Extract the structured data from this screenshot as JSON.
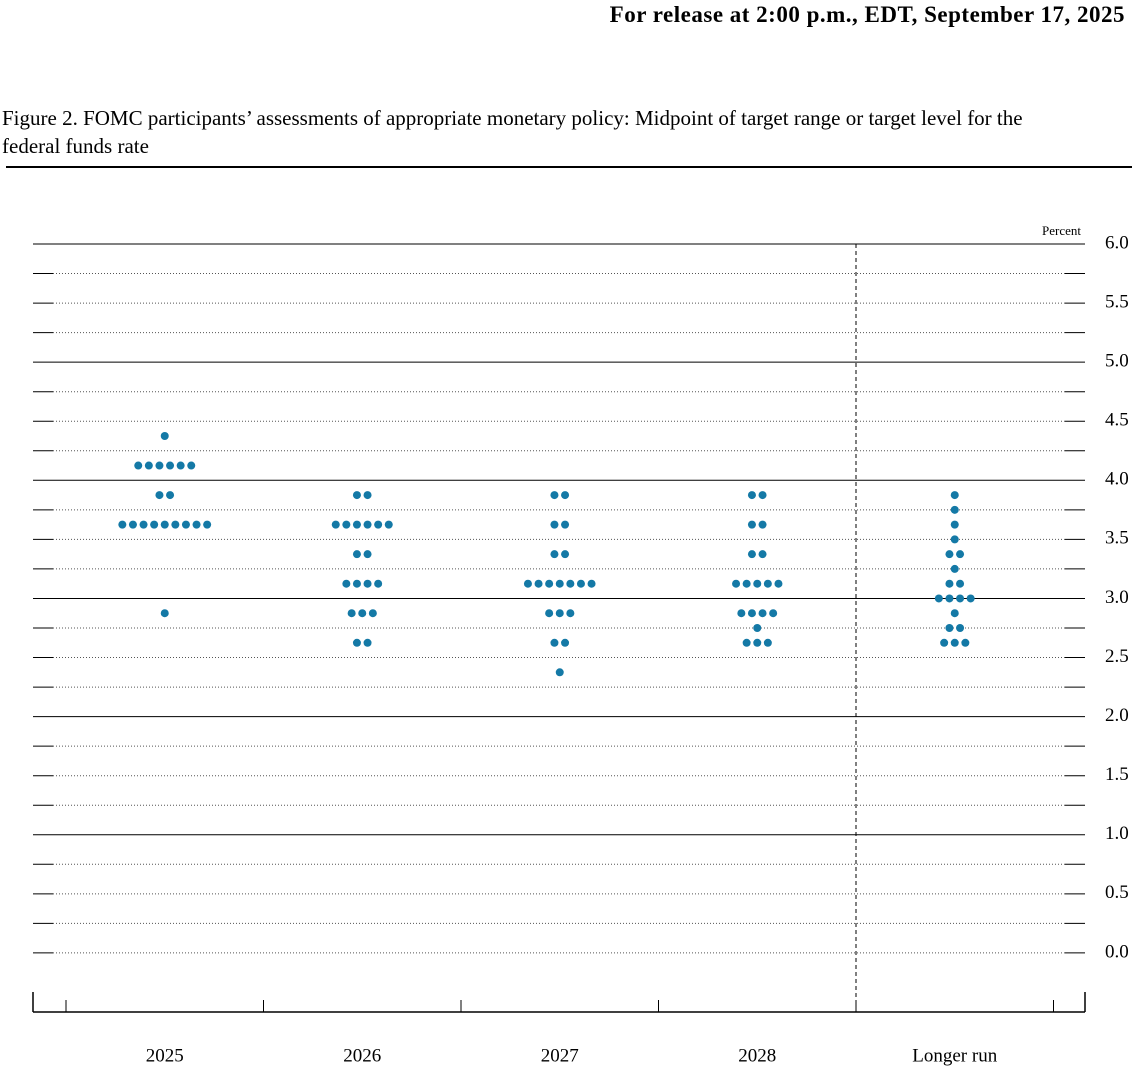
{
  "header": "For release at 2:00 p.m., EDT, September 17, 2025",
  "chart_data": {
    "type": "dotplot",
    "title": "Figure 2. FOMC participants’ assessments of appropriate monetary policy: Midpoint of target range or target level for the federal funds rate",
    "y_label": "Percent",
    "categories": [
      "2025",
      "2026",
      "2027",
      "2028",
      "Longer run"
    ],
    "values": [
      [
        4.375,
        4.125,
        4.125,
        4.125,
        4.125,
        4.125,
        4.125,
        3.875,
        3.875,
        3.625,
        3.625,
        3.625,
        3.625,
        3.625,
        3.625,
        3.625,
        3.625,
        3.625,
        2.875
      ],
      [
        3.875,
        3.875,
        3.625,
        3.625,
        3.625,
        3.625,
        3.625,
        3.625,
        3.375,
        3.375,
        3.125,
        3.125,
        3.125,
        3.125,
        2.875,
        2.875,
        2.875,
        2.625,
        2.625
      ],
      [
        3.875,
        3.875,
        3.625,
        3.625,
        3.375,
        3.375,
        3.125,
        3.125,
        3.125,
        3.125,
        3.125,
        3.125,
        3.125,
        2.875,
        2.875,
        2.875,
        2.625,
        2.625,
        2.375
      ],
      [
        3.875,
        3.875,
        3.625,
        3.625,
        3.375,
        3.375,
        3.125,
        3.125,
        3.125,
        3.125,
        3.125,
        2.875,
        2.875,
        2.875,
        2.875,
        2.75,
        2.625,
        2.625,
        2.625
      ],
      [
        3.875,
        3.75,
        3.625,
        3.5,
        3.375,
        3.375,
        3.25,
        3.125,
        3.125,
        3.0,
        3.0,
        3.0,
        3.0,
        2.875,
        2.75,
        2.75,
        2.625,
        2.625,
        2.625
      ]
    ],
    "color": "#1479a6",
    "ylim": [
      -0.5,
      6
    ],
    "yticks": [
      {
        "value": 0,
        "label": "0.0"
      },
      0.5,
      {
        "value": 1,
        "label": "1.0"
      },
      1.5,
      {
        "value": 2,
        "label": "2.0"
      },
      2.5,
      {
        "value": 3,
        "label": "3.0"
      },
      3.5,
      {
        "value": 4,
        "label": "4.0"
      },
      4.5,
      {
        "value": 5,
        "label": "5.0"
      },
      5.5,
      {
        "value": 6,
        "label": "6.0"
      }
    ]
  }
}
